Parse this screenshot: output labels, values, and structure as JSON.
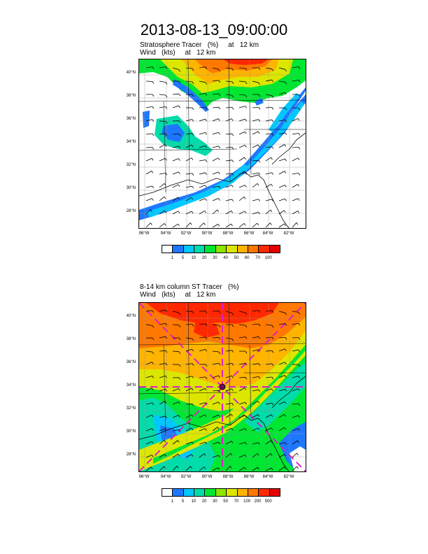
{
  "title": "2013-08-13_09:00:00",
  "panel1": {
    "subtitle_line1": "Stratosphere Tracer   (%)     at   12 km",
    "subtitle_line2": "Wind   (kts)     at   12 km",
    "colorbar_labels": [
      "1",
      "5",
      "10",
      "20",
      "30",
      "40",
      "50",
      "60",
      "70",
      "100"
    ],
    "colorbar_colors": [
      "#ffffff",
      "#1e78ff",
      "#00c8ff",
      "#00dcaa",
      "#00e632",
      "#8ce600",
      "#dce600",
      "#ffb400",
      "#ff7800",
      "#ff2800",
      "#e60000"
    ]
  },
  "panel2": {
    "subtitle_line1": "8-14 km column ST Tracer   (%)",
    "subtitle_line2": "Wind   (kts)     at   12 km",
    "colorbar_labels": [
      "1",
      "5",
      "10",
      "20",
      "30",
      "50",
      "70",
      "100",
      "200",
      "500"
    ],
    "colorbar_colors": [
      "#ffffff",
      "#1e78ff",
      "#00c8ff",
      "#00dcaa",
      "#00e632",
      "#8ce600",
      "#dce600",
      "#ffb400",
      "#ff7800",
      "#ff2800",
      "#e60000"
    ]
  },
  "lat_labels": [
    "40°N",
    "38°N",
    "36°N",
    "34°N",
    "32°N",
    "30°N",
    "28°N"
  ],
  "lon_labels": [
    "96°W",
    "94°W",
    "92°W",
    "90°W",
    "88°W",
    "86°W",
    "84°W",
    "82°W"
  ]
}
